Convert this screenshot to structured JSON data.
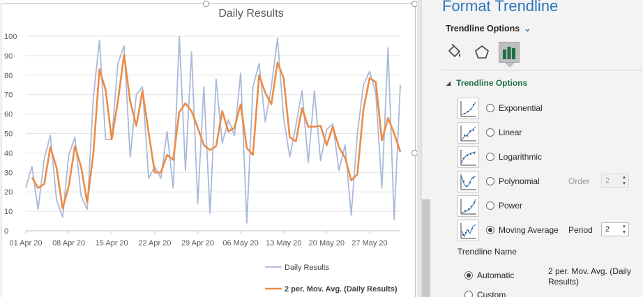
{
  "chart_data": {
    "type": "line",
    "title": "Daily Results",
    "ylim": [
      0,
      100
    ],
    "yticks": [
      "0",
      "10",
      "20",
      "30",
      "40",
      "50",
      "60",
      "70",
      "80",
      "90",
      "100"
    ],
    "xticks": [
      "01 Apr 20",
      "08 Apr 20",
      "15 Apr 20",
      "22 Apr 20",
      "29 Apr 20",
      "06 May 20",
      "13 May 20",
      "20 May 20",
      "27 May 20"
    ],
    "legend_position": "bottom",
    "series": [
      {
        "name": "Daily Results",
        "color": "#a9b9d9",
        "values": [
          22,
          33,
          11,
          37,
          49,
          16,
          7,
          39,
          48,
          18,
          11,
          68,
          98,
          47,
          47,
          86,
          95,
          38,
          70,
          74,
          27,
          33,
          27,
          51,
          22,
          100,
          31,
          92,
          14,
          74,
          9,
          78,
          45,
          57,
          49,
          81,
          4,
          74,
          86,
          56,
          74,
          99,
          58,
          38,
          54,
          72,
          35,
          72,
          36,
          52,
          55,
          31,
          44,
          8,
          50,
          75,
          82,
          71,
          22,
          94,
          6,
          75
        ]
      },
      {
        "name": "2 per. Mov. Avg. (Daily Results)",
        "color": "#ed8b45",
        "values": [
          null,
          27.5,
          22,
          24,
          43,
          32.5,
          11.5,
          23,
          43.5,
          33,
          14.5,
          39.5,
          83,
          72.5,
          47,
          66.5,
          90.5,
          66.5,
          54,
          72,
          50.5,
          30,
          30,
          39,
          36.5,
          61,
          65.5,
          61.5,
          53,
          44,
          41.5,
          43.5,
          61.5,
          51,
          53,
          65,
          42.5,
          39,
          80,
          71,
          65,
          86.5,
          78.5,
          48,
          46,
          63,
          53.5,
          53.5,
          54,
          44,
          53.5,
          43,
          37.5,
          26,
          29,
          62.5,
          78.5,
          76.5,
          46.5,
          58,
          50,
          40.5
        ]
      }
    ]
  },
  "pane": {
    "title": "Format Trendline",
    "subtitle": "Trendline Options",
    "section": "Trendline Options",
    "options": [
      {
        "label": "Exponential",
        "selected": false,
        "icon": "exponential-curve-icon"
      },
      {
        "label": "Linear",
        "selected": false,
        "icon": "linear-trend-icon"
      },
      {
        "label": "Logarithmic",
        "selected": false,
        "icon": "logarithmic-curve-icon"
      },
      {
        "label": "Polynomial",
        "selected": false,
        "icon": "polynomial-curve-icon"
      },
      {
        "label": "Power",
        "selected": false,
        "icon": "power-curve-icon"
      },
      {
        "label": "Moving Average",
        "selected": true,
        "icon": "moving-average-icon"
      }
    ],
    "order_label": "Order",
    "order_value": "2",
    "period_label": "Period",
    "period_value": "2",
    "trendline_name_label": "Trendline Name",
    "automatic_label": "Automatic",
    "automatic_value": "2 per. Mov. Avg. (Daily Results)",
    "custom_label": "Custom"
  }
}
